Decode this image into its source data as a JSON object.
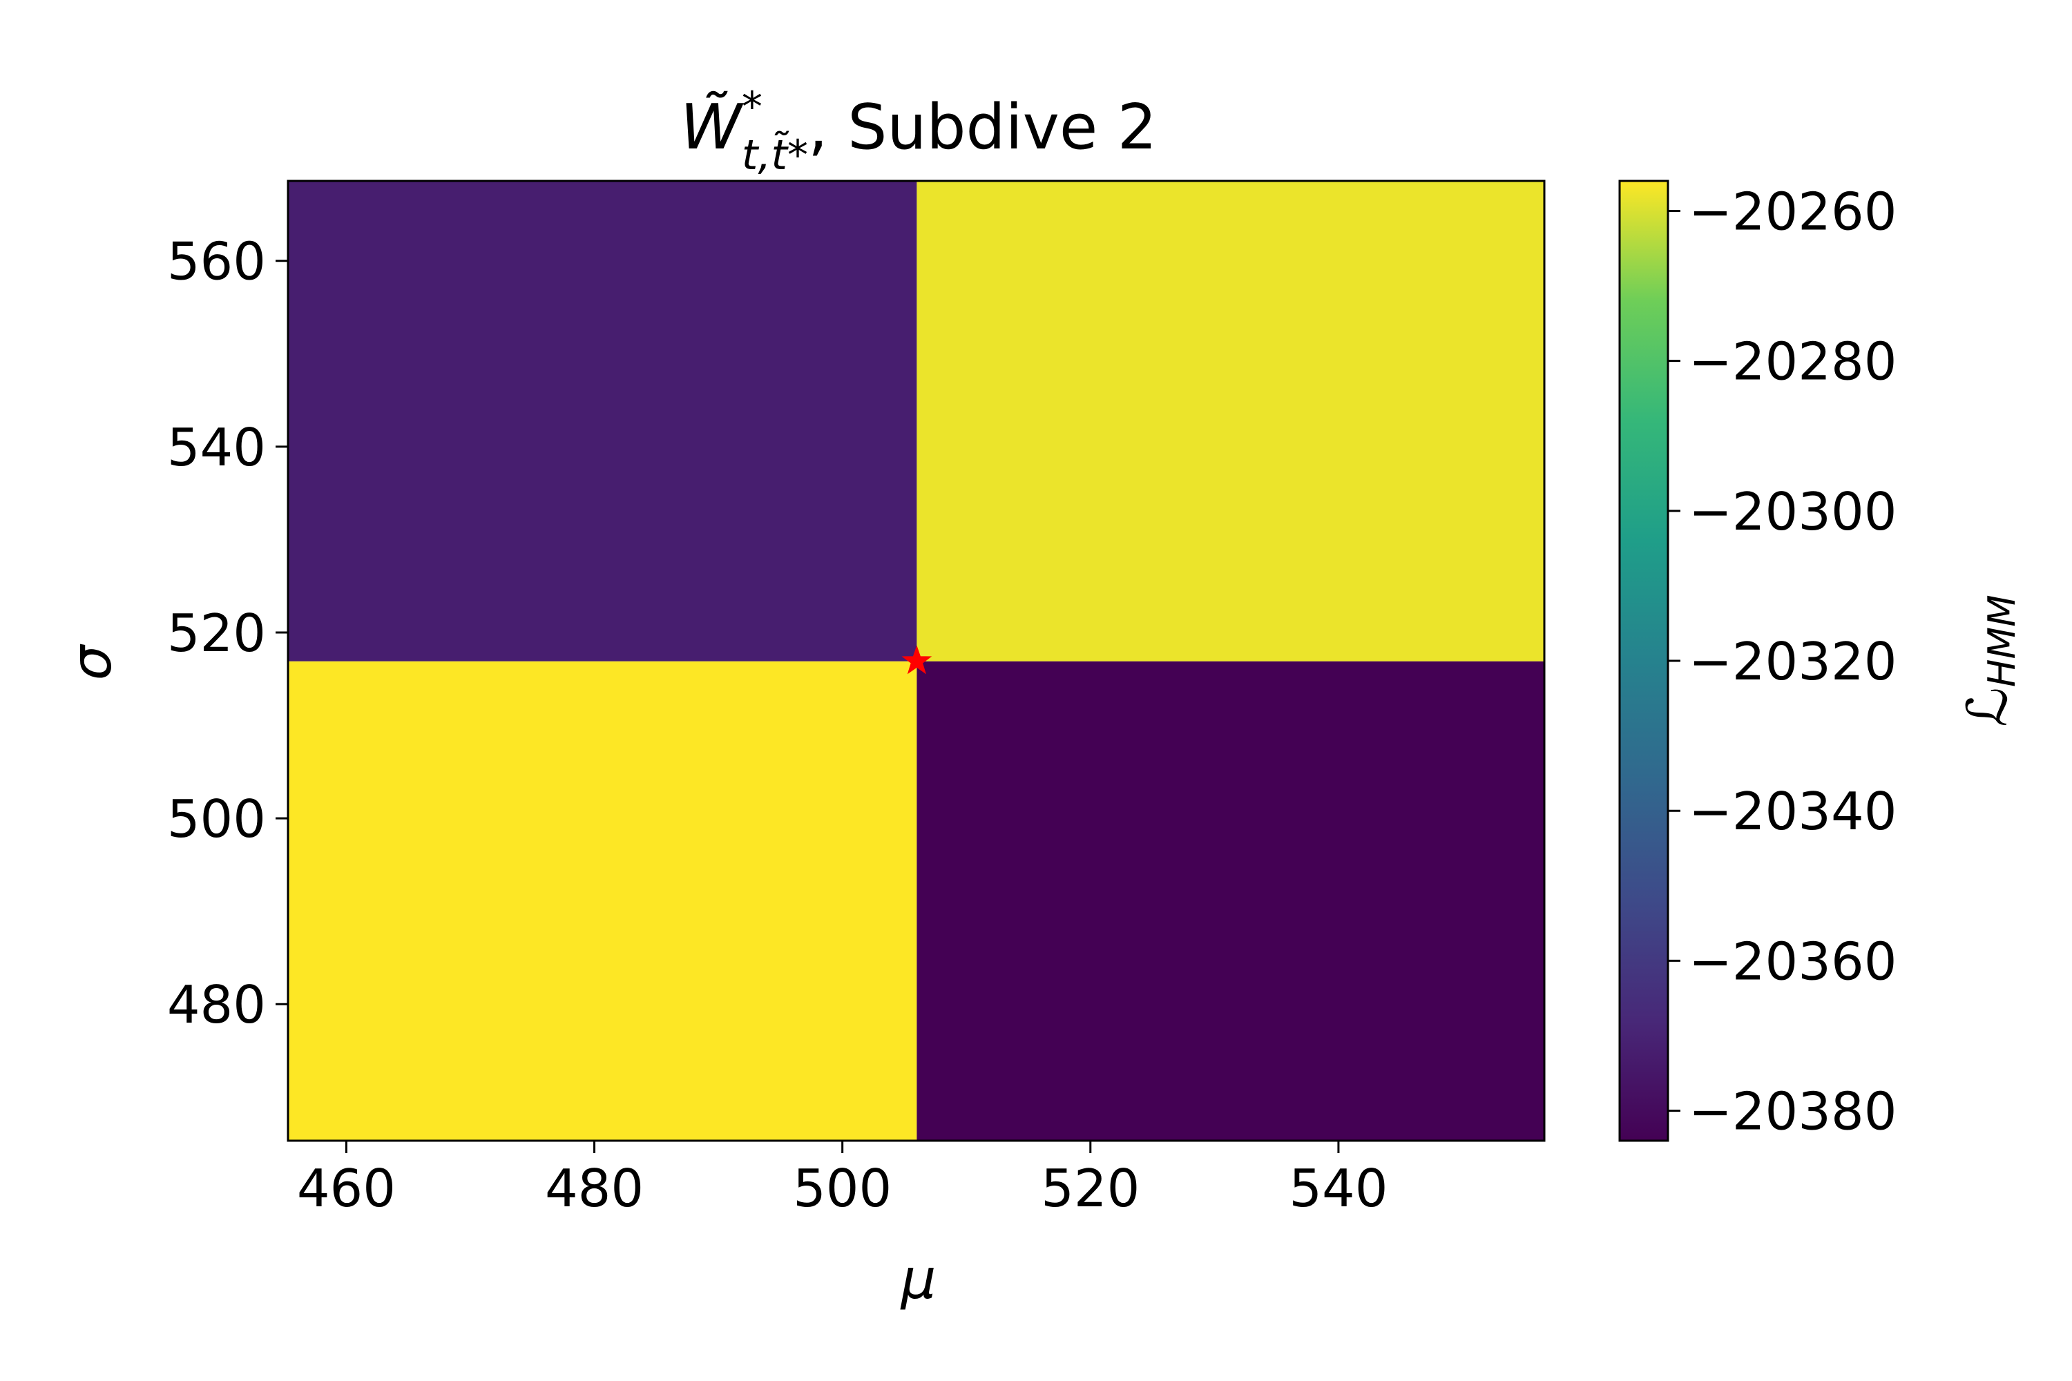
{
  "chart_data": {
    "type": "heatmap",
    "title": "W̃*t,t̃*, Subdive 2",
    "xlabel": "μ",
    "ylabel": "σ",
    "xlim": [
      455.3,
      556.6
    ],
    "ylim": [
      465.3,
      568.6
    ],
    "x_edges": [
      455.3,
      506.0,
      556.6
    ],
    "y_edges": [
      465.3,
      516.9,
      568.6
    ],
    "x_ticks": [
      460,
      480,
      500,
      520,
      540
    ],
    "y_ticks": [
      480,
      500,
      520,
      540,
      560
    ],
    "cells": [
      {
        "mu_range": [
          455.3,
          506.0
        ],
        "sigma_range": [
          465.3,
          516.9
        ],
        "value": -20256
      },
      {
        "mu_range": [
          506.0,
          556.6
        ],
        "sigma_range": [
          465.3,
          516.9
        ],
        "value": -20384
      },
      {
        "mu_range": [
          455.3,
          506.0
        ],
        "sigma_range": [
          516.9,
          568.6
        ],
        "value": -20372
      },
      {
        "mu_range": [
          506.0,
          556.6
        ],
        "sigma_range": [
          516.9,
          568.6
        ],
        "value": -20258
      }
    ],
    "marker": {
      "mu": 506.0,
      "sigma": 516.9,
      "symbol": "star",
      "color": "#ff0000"
    },
    "colorbar": {
      "label": "ℒHMM",
      "colormap": "viridis",
      "range": [
        -20384,
        -20256
      ],
      "ticks": [
        -20260,
        -20280,
        -20300,
        -20320,
        -20340,
        -20360,
        -20380
      ],
      "tick_labels": [
        "−20260",
        "−20280",
        "−20300",
        "−20320",
        "−20340",
        "−20360",
        "−20380"
      ]
    },
    "grid": false
  }
}
